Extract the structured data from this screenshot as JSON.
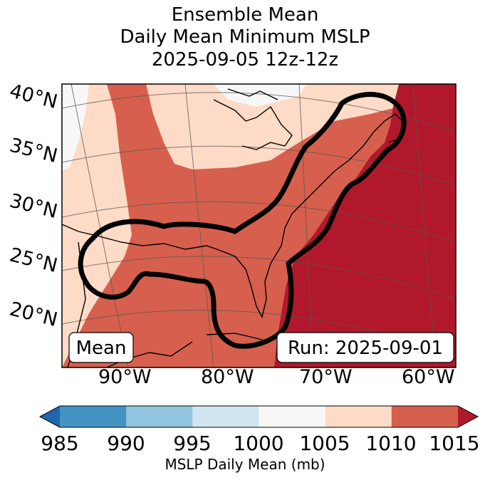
{
  "title": {
    "line1": "Ensemble Mean",
    "line2": "Daily Mean Minimum MSLP",
    "line3": "2025-09-05 12z-12z"
  },
  "map": {
    "lat_labels": [
      "40°N",
      "35°N",
      "30°N",
      "25°N",
      "20°N"
    ],
    "lon_labels": [
      "90°W",
      "80°W",
      "70°W",
      "60°W"
    ],
    "mean_label": "Mean",
    "run_label": "Run: 2025-09-01"
  },
  "colorbar": {
    "label": "MSLP Daily Mean (mb)",
    "ticks": [
      "985",
      "990",
      "995",
      "1000",
      "1005",
      "1010",
      "1015"
    ],
    "colors": [
      "#2166ac",
      "#4393c3",
      "#92c5de",
      "#d1e5f0",
      "#f7f7f7",
      "#fddbc7",
      "#d6604d",
      "#b2182b"
    ]
  }
}
